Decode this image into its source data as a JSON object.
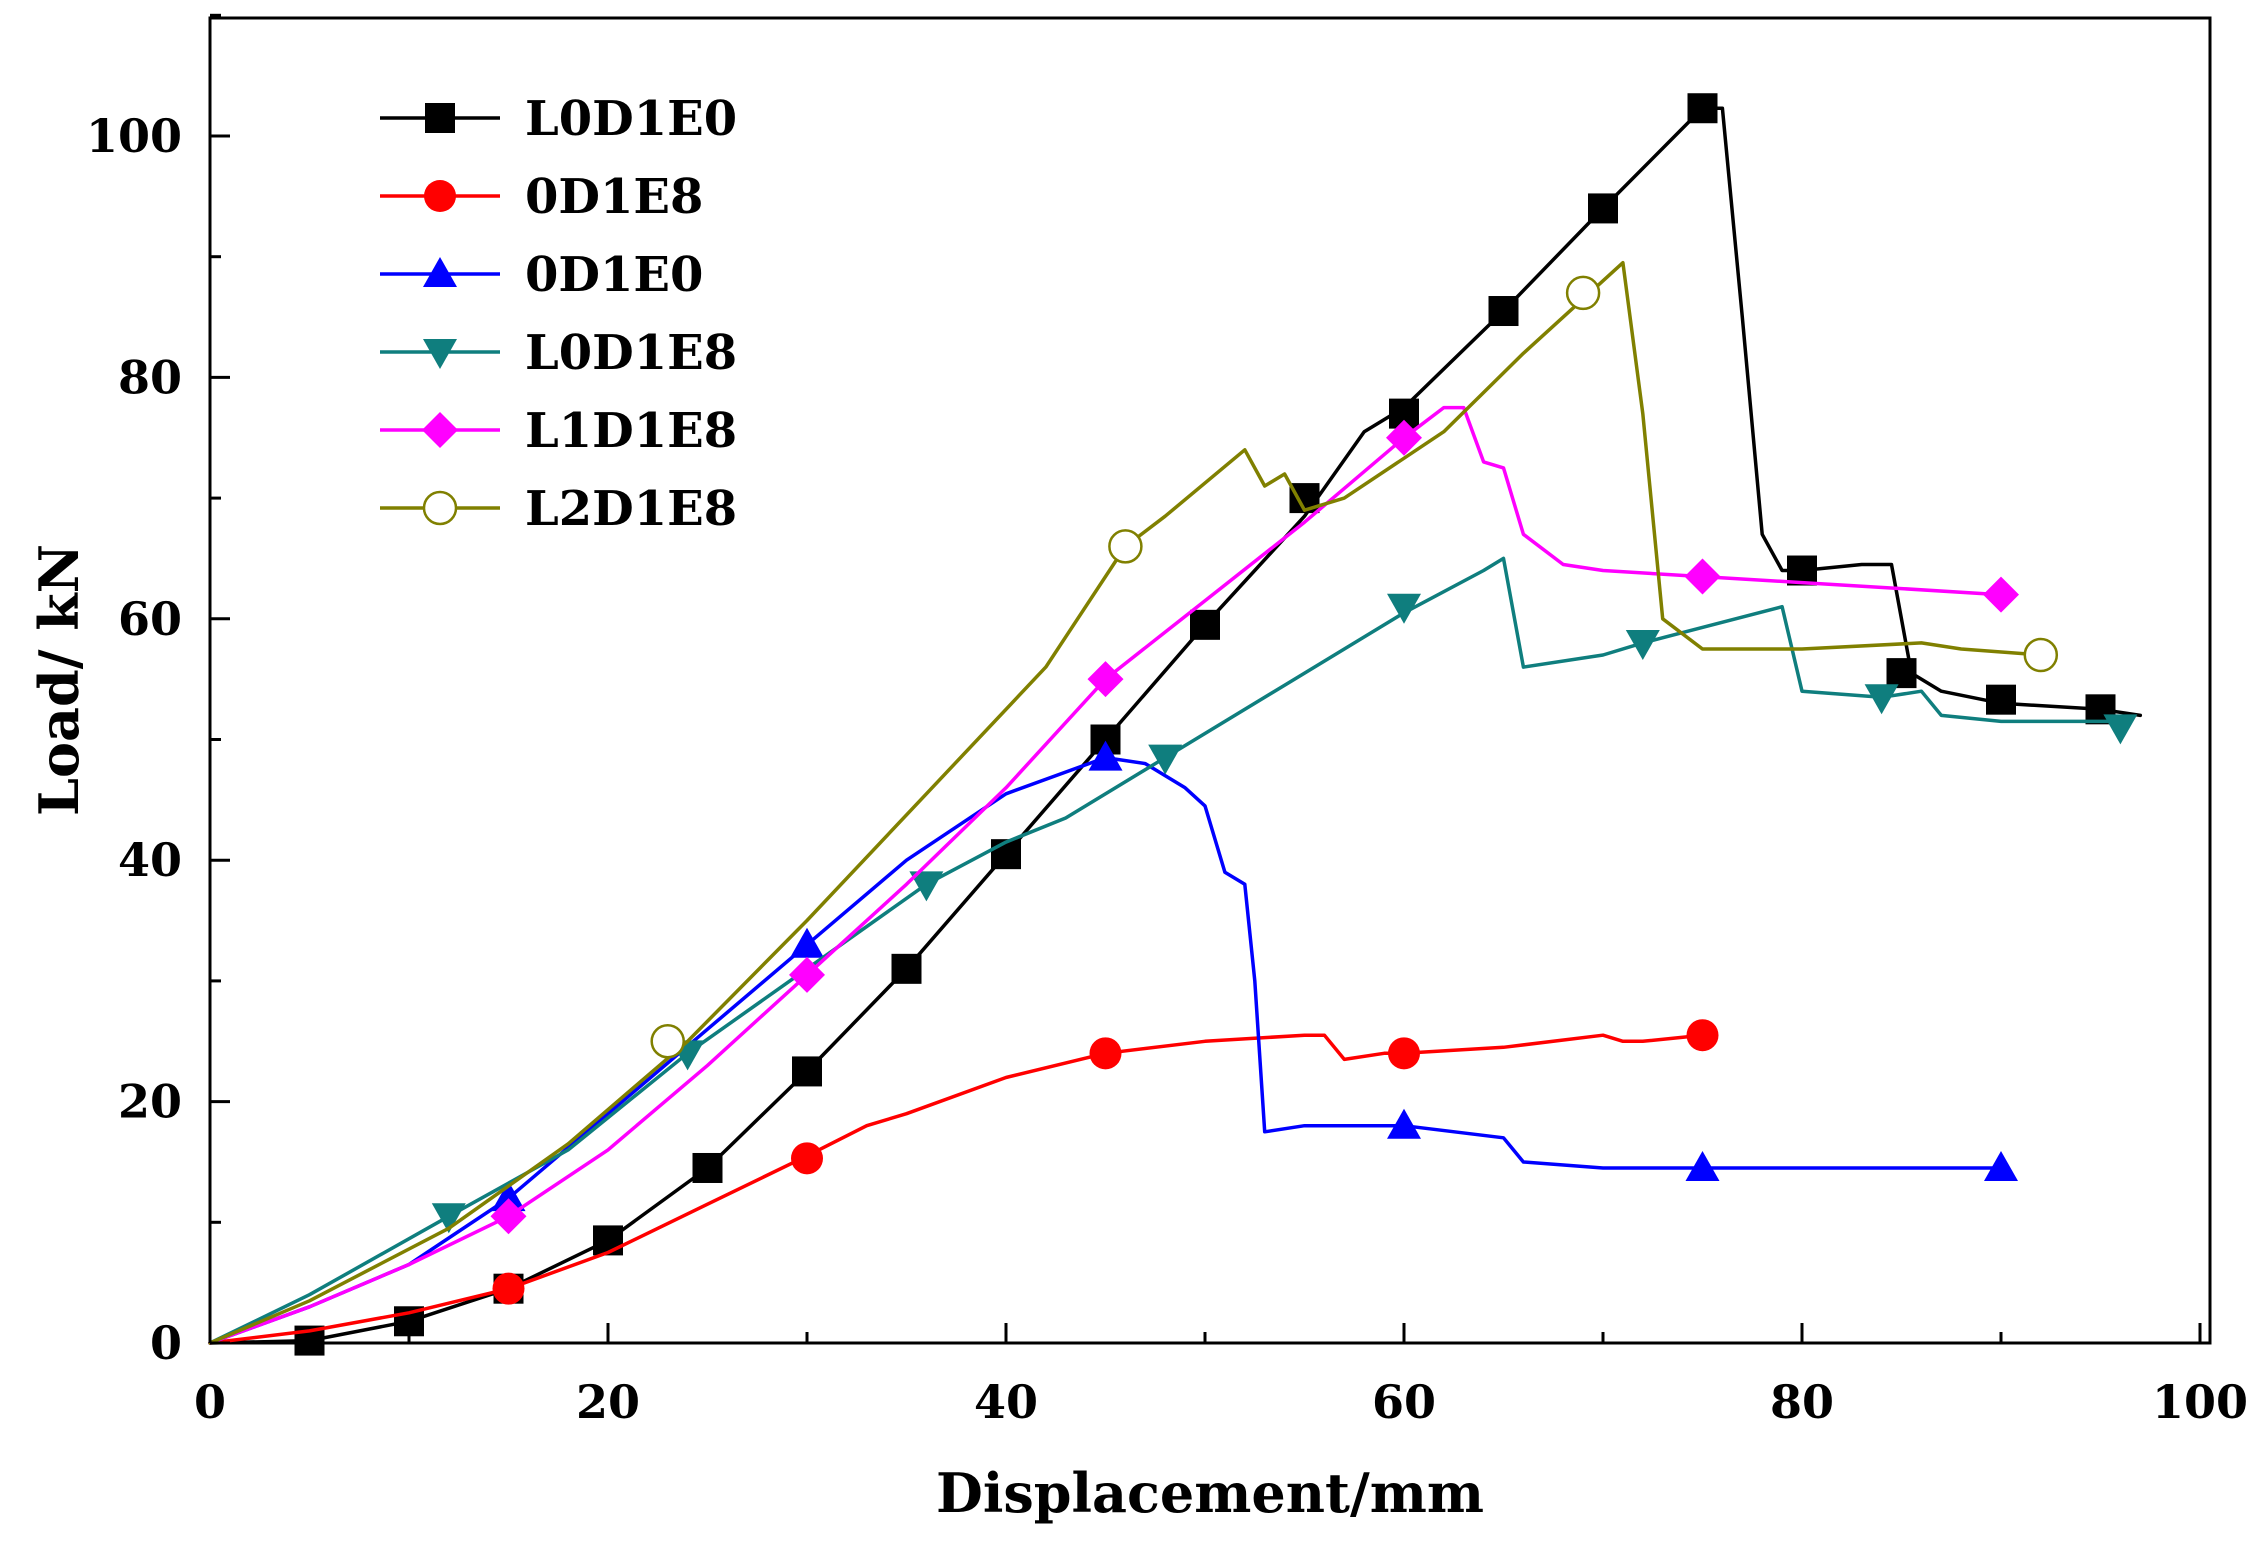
{
  "chart_data": {
    "type": "line",
    "title": "",
    "xlabel": "Displacement/mm",
    "ylabel": "Load/ kN",
    "xlim": [
      0,
      100
    ],
    "ylim": [
      0,
      110
    ],
    "xticks": [
      0,
      20,
      40,
      60,
      80,
      100
    ],
    "yticks": [
      0,
      20,
      40,
      60,
      80,
      100
    ],
    "xtick_labels": [
      "0",
      "20",
      "40",
      "60",
      "80",
      "100"
    ],
    "ytick_labels": [
      "0",
      "20",
      "40",
      "60",
      "80",
      "100"
    ],
    "grid": false,
    "legend_position": "top-left",
    "series": [
      {
        "name": "L0D1E0",
        "color": "#000000",
        "marker": "square",
        "points": [
          [
            0,
            0
          ],
          [
            5,
            0.2
          ],
          [
            10,
            1.8
          ],
          [
            15,
            4.5
          ],
          [
            20,
            8.5
          ],
          [
            25,
            14.5
          ],
          [
            30,
            22.5
          ],
          [
            35,
            31
          ],
          [
            40,
            40.5
          ],
          [
            45,
            50
          ],
          [
            50,
            59.5
          ],
          [
            55,
            68.5
          ],
          [
            58,
            75.5
          ],
          [
            60,
            77.5
          ],
          [
            65,
            85.5
          ],
          [
            70,
            94
          ],
          [
            75,
            102.3
          ],
          [
            76,
            102.3
          ],
          [
            77,
            85
          ],
          [
            78,
            67
          ],
          [
            79,
            64
          ],
          [
            80,
            64
          ],
          [
            83,
            64.5
          ],
          [
            84.5,
            64.5
          ],
          [
            85.5,
            55.5
          ],
          [
            87,
            54
          ],
          [
            90,
            53
          ],
          [
            95,
            52.5
          ],
          [
            97,
            52
          ]
        ],
        "markers": [
          [
            5,
            0.2
          ],
          [
            10,
            1.8
          ],
          [
            15,
            4.5
          ],
          [
            20,
            8.5
          ],
          [
            25,
            14.5
          ],
          [
            30,
            22.5
          ],
          [
            35,
            31
          ],
          [
            40,
            40.5
          ],
          [
            45,
            50
          ],
          [
            50,
            59.5
          ],
          [
            55,
            70
          ],
          [
            60,
            77
          ],
          [
            65,
            85.5
          ],
          [
            70,
            94
          ],
          [
            75,
            102.3
          ],
          [
            80,
            64
          ],
          [
            85,
            55.5
          ],
          [
            90,
            53.3
          ],
          [
            95,
            52.5
          ]
        ]
      },
      {
        "name": "0D1E8",
        "color": "#ff0000",
        "marker": "circle",
        "points": [
          [
            0,
            0
          ],
          [
            5,
            1
          ],
          [
            10,
            2.5
          ],
          [
            15,
            4.5
          ],
          [
            20,
            7.5
          ],
          [
            25,
            11.5
          ],
          [
            30,
            15.5
          ],
          [
            33,
            18
          ],
          [
            35,
            19
          ],
          [
            40,
            22
          ],
          [
            45,
            24
          ],
          [
            50,
            25
          ],
          [
            55,
            25.5
          ],
          [
            56,
            25.5
          ],
          [
            57,
            23.5
          ],
          [
            59,
            24
          ],
          [
            60,
            24
          ],
          [
            65,
            24.5
          ],
          [
            70,
            25.5
          ],
          [
            71,
            25
          ],
          [
            72,
            25
          ],
          [
            75,
            25.5
          ]
        ],
        "markers": [
          [
            15,
            4.5
          ],
          [
            30,
            15.3
          ],
          [
            45,
            24
          ],
          [
            60,
            24
          ],
          [
            75,
            25.5
          ]
        ]
      },
      {
        "name": "0D1E0",
        "color": "#0000ff",
        "marker": "triangle-up",
        "points": [
          [
            0,
            0
          ],
          [
            5,
            3
          ],
          [
            10,
            6.5
          ],
          [
            15,
            12
          ],
          [
            20,
            19
          ],
          [
            25,
            26
          ],
          [
            30,
            33
          ],
          [
            35,
            40
          ],
          [
            40,
            45.5
          ],
          [
            45,
            48.5
          ],
          [
            47,
            48
          ],
          [
            49,
            46
          ],
          [
            50,
            44.5
          ],
          [
            51,
            39
          ],
          [
            52,
            38
          ],
          [
            52.5,
            30
          ],
          [
            53,
            17.5
          ],
          [
            55,
            18
          ],
          [
            60,
            18
          ],
          [
            65,
            17
          ],
          [
            66,
            15
          ],
          [
            70,
            14.5
          ],
          [
            75,
            14.5
          ],
          [
            80,
            14.5
          ],
          [
            90,
            14.5
          ]
        ],
        "markers": [
          [
            15,
            12
          ],
          [
            30,
            33
          ],
          [
            45,
            48.5
          ],
          [
            60,
            18
          ],
          [
            75,
            14.5
          ],
          [
            90,
            14.5
          ]
        ]
      },
      {
        "name": "L0D1E8",
        "color": "#0f7e7e",
        "marker": "triangle-down",
        "points": [
          [
            0,
            0
          ],
          [
            5,
            4
          ],
          [
            12,
            10.5
          ],
          [
            18,
            16
          ],
          [
            24,
            24
          ],
          [
            30,
            31
          ],
          [
            36,
            38
          ],
          [
            40,
            41.5
          ],
          [
            43,
            43.5
          ],
          [
            48,
            48.5
          ],
          [
            54,
            54.5
          ],
          [
            60,
            60.5
          ],
          [
            64,
            64
          ],
          [
            65,
            65
          ],
          [
            66,
            56
          ],
          [
            70,
            57
          ],
          [
            72,
            58
          ],
          [
            79,
            61
          ],
          [
            80,
            54
          ],
          [
            84,
            53.5
          ],
          [
            86,
            54
          ],
          [
            87,
            52
          ],
          [
            90,
            51.5
          ],
          [
            96,
            51.5
          ]
        ],
        "markers": [
          [
            12,
            10.5
          ],
          [
            24,
            24
          ],
          [
            36,
            38
          ],
          [
            48,
            48.5
          ],
          [
            60,
            61
          ],
          [
            72,
            58
          ],
          [
            84,
            53.5
          ],
          [
            96,
            51
          ]
        ]
      },
      {
        "name": "L1D1E8",
        "color": "#ff00ff",
        "marker": "diamond",
        "points": [
          [
            0,
            0
          ],
          [
            5,
            3
          ],
          [
            10,
            6.5
          ],
          [
            15,
            10.5
          ],
          [
            20,
            16
          ],
          [
            25,
            23
          ],
          [
            30,
            30.5
          ],
          [
            35,
            38
          ],
          [
            40,
            46
          ],
          [
            45,
            55
          ],
          [
            50,
            61.5
          ],
          [
            55,
            68
          ],
          [
            60,
            75
          ],
          [
            62,
            77.5
          ],
          [
            63,
            77.5
          ],
          [
            64,
            73
          ],
          [
            65,
            72.5
          ],
          [
            66,
            67
          ],
          [
            68,
            64.5
          ],
          [
            70,
            64
          ],
          [
            75,
            63.5
          ],
          [
            80,
            63
          ],
          [
            85,
            62.5
          ],
          [
            90,
            62
          ]
        ],
        "markers": [
          [
            15,
            10.5
          ],
          [
            30,
            30.5
          ],
          [
            45,
            55
          ],
          [
            60,
            75
          ],
          [
            75,
            63.5
          ],
          [
            90,
            62
          ]
        ]
      },
      {
        "name": "L2D1E8",
        "color": "#808000",
        "marker": "open-circle",
        "points": [
          [
            0,
            0
          ],
          [
            5,
            3.5
          ],
          [
            12,
            9.5
          ],
          [
            18,
            16.5
          ],
          [
            24,
            25
          ],
          [
            30,
            35
          ],
          [
            36,
            45.5
          ],
          [
            42,
            56
          ],
          [
            46,
            66
          ],
          [
            48,
            68.5
          ],
          [
            52,
            74
          ],
          [
            53,
            71
          ],
          [
            54,
            72
          ],
          [
            55,
            69
          ],
          [
            57,
            70
          ],
          [
            62,
            75.5
          ],
          [
            66,
            82
          ],
          [
            70,
            88
          ],
          [
            71,
            89.5
          ],
          [
            72,
            77
          ],
          [
            73,
            60
          ],
          [
            75,
            57.5
          ],
          [
            80,
            57.5
          ],
          [
            86,
            58
          ],
          [
            88,
            57.5
          ],
          [
            92,
            57
          ]
        ],
        "markers": [
          [
            23,
            25
          ],
          [
            46,
            66
          ],
          [
            69,
            87
          ],
          [
            92,
            57
          ]
        ]
      }
    ]
  }
}
